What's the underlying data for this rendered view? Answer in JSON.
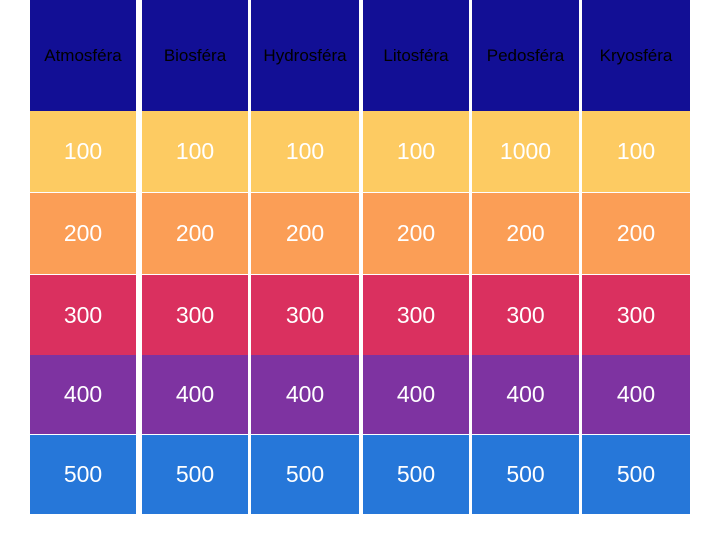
{
  "board": {
    "header_color": "#120F95",
    "row_colors": [
      "#FDCB62",
      "#FB9E56",
      "#DA305F",
      "#7E33A1",
      "#2677D9"
    ],
    "categories": [
      "Atmosféra",
      "Biosféra",
      "Hydrosféra",
      "Litosféra",
      "Pedosféra",
      "Kryosféra"
    ],
    "rows": [
      [
        "100",
        "100",
        "100",
        "100",
        "1000",
        "100"
      ],
      [
        "200",
        "200",
        "200",
        "200",
        "200",
        "200"
      ],
      [
        "300",
        "300",
        "300",
        "300",
        "300",
        "300"
      ],
      [
        "400",
        "400",
        "400",
        "400",
        "400",
        "400"
      ],
      [
        "500",
        "500",
        "500",
        "500",
        "500",
        "500"
      ]
    ]
  }
}
